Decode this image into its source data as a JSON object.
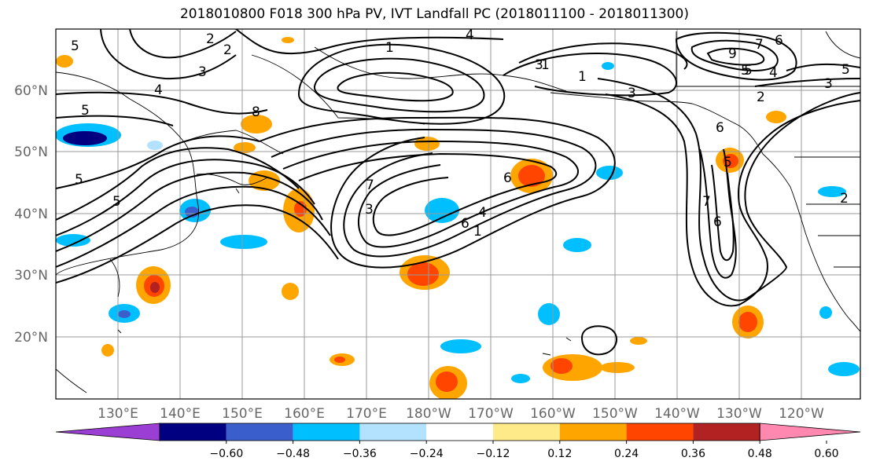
{
  "title": "2018010800 F018 300 hPa PV, IVT Landfall PC (2018011100 - 2018011300)",
  "lon_labels": [
    "130°E",
    "140°E",
    "150°E",
    "160°E",
    "170°E",
    "180°W",
    "170°W",
    "160°W",
    "150°W",
    "140°W",
    "130°W",
    "120°W"
  ],
  "lat_labels": [
    "60°N",
    "50°N",
    "40°N",
    "30°N",
    "20°N"
  ],
  "colorbar": {
    "ticks": [
      "−0.60",
      "−0.48",
      "−0.36",
      "−0.24",
      "−0.12",
      "0.12",
      "0.24",
      "0.36",
      "0.48",
      "0.60"
    ],
    "colors": [
      "#9b3fd4",
      "#000080",
      "#3a5fcd",
      "#00bfff",
      "#b2e2ff",
      "#ffffff",
      "#ffea8a",
      "#ffa500",
      "#ff4500",
      "#b22222",
      "#ff88b0"
    ]
  },
  "contour_labels": [
    "5",
    "2",
    "2",
    "3",
    "4",
    "4",
    "1",
    "3",
    "5",
    "8",
    "5",
    "5",
    "1",
    "6",
    "7",
    "3",
    "1",
    "4",
    "6",
    "1",
    "5",
    "4",
    "3",
    "2",
    "6",
    "5",
    "7",
    "6",
    "7",
    "5",
    "6",
    "9",
    "3",
    "5",
    "2"
  ]
}
